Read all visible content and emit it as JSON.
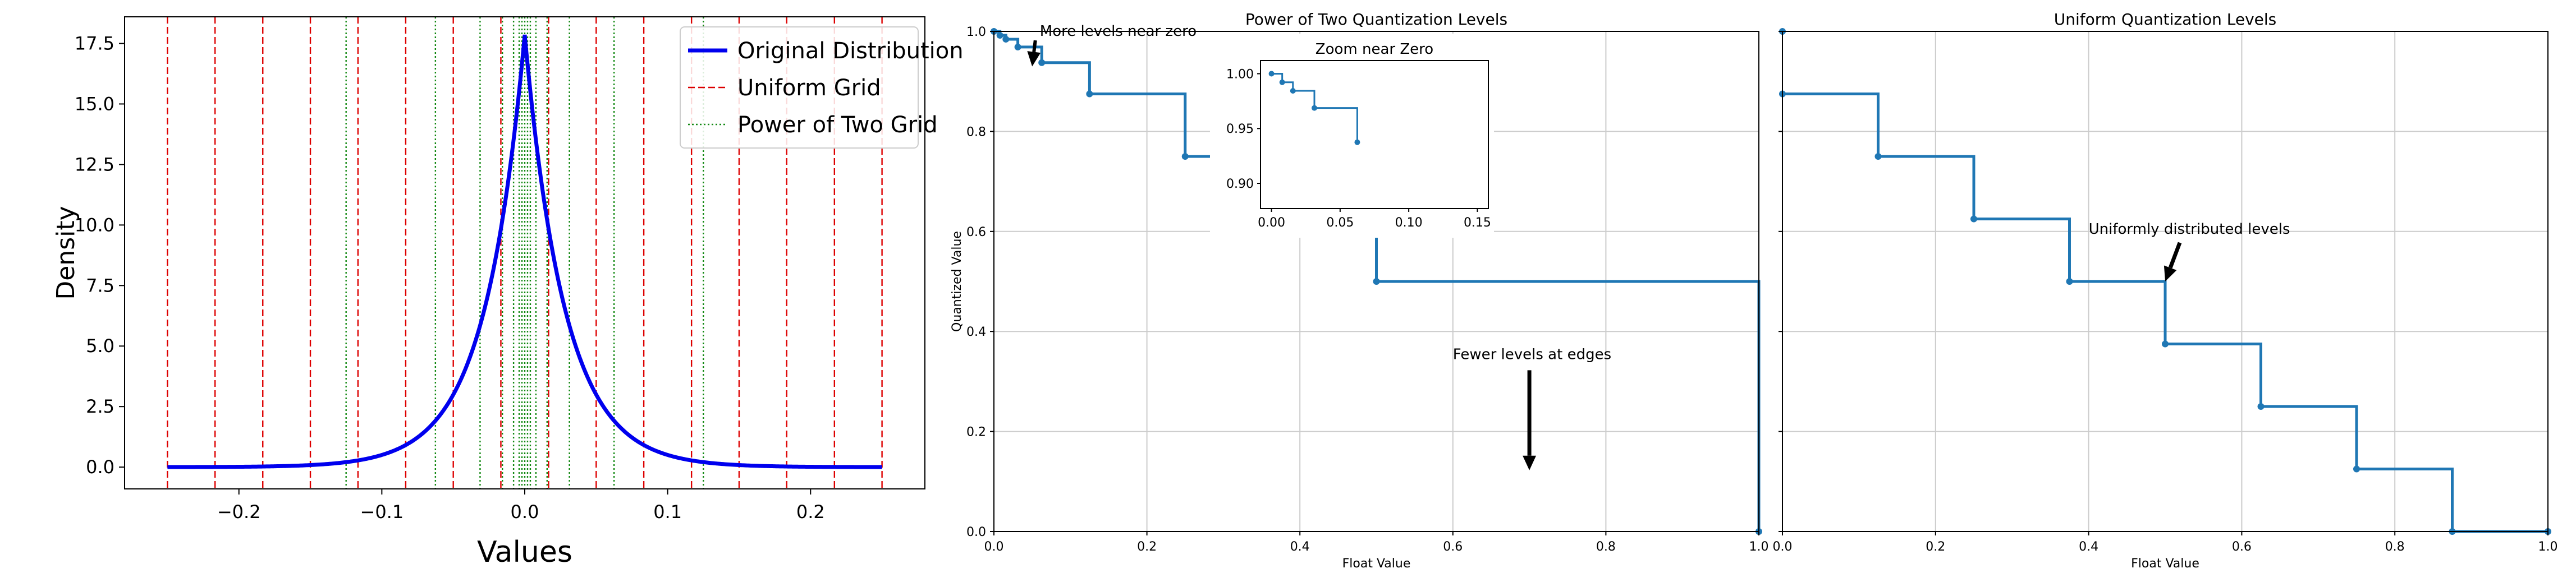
{
  "chart_data": [
    {
      "type": "line",
      "title": "",
      "xlabel": "Values",
      "ylabel": "Density",
      "xlim": [
        -0.28,
        0.28
      ],
      "ylim": [
        -0.9,
        18.6
      ],
      "xticks": [
        -0.2,
        -0.1,
        0.0,
        0.1,
        0.2
      ],
      "xtick_labels": [
        "−0.2",
        "−0.1",
        "0.0",
        "0.1",
        "0.2"
      ],
      "yticks": [
        0.0,
        2.5,
        5.0,
        7.5,
        10.0,
        12.5,
        15.0,
        17.5
      ],
      "ytick_labels": [
        "0.0",
        "2.5",
        "5.0",
        "7.5",
        "10.0",
        "12.5",
        "15.0",
        "17.5"
      ],
      "grid": false,
      "legend_position": "top-right",
      "series": [
        {
          "name": "Original Distribution",
          "style": "solid",
          "color": "#0000ee",
          "distribution": "laplace",
          "loc": 0.0,
          "scale": 0.028,
          "x_range": [
            -0.25,
            0.25
          ]
        }
      ],
      "vertical_lines": [
        {
          "name": "Uniform Grid",
          "style": "dashed",
          "color": "#dd0000",
          "x": [
            -0.25,
            -0.2167,
            -0.1833,
            -0.15,
            -0.1167,
            -0.0833,
            -0.05,
            -0.0167,
            0.0167,
            0.05,
            0.0833,
            0.1167,
            0.15,
            0.1833,
            0.2167,
            0.25
          ]
        },
        {
          "name": "Power of Two Grid",
          "style": "dotted",
          "color": "#118811",
          "x": [
            -0.125,
            -0.0625,
            -0.03125,
            -0.015625,
            -0.0078125,
            -0.00390625,
            -0.001953125,
            0.0,
            0.001953125,
            0.00390625,
            0.0078125,
            0.015625,
            0.03125,
            0.0625,
            0.125
          ]
        }
      ]
    },
    {
      "type": "line",
      "title": "Power of Two Quantization Levels",
      "xlabel": "Float Value",
      "ylabel": "Quantized Value",
      "xlim": [
        0.0,
        1.0
      ],
      "ylim": [
        0.0,
        1.0
      ],
      "xticks": [
        0.0,
        0.2,
        0.4,
        0.6,
        0.8,
        1.0
      ],
      "xtick_labels": [
        "0.0",
        "0.2",
        "0.4",
        "0.6",
        "0.8",
        "1.0"
      ],
      "yticks": [
        0.0,
        0.2,
        0.4,
        0.6,
        0.8,
        1.0
      ],
      "ytick_labels": [
        "0.0",
        "0.2",
        "0.4",
        "0.6",
        "0.8",
        "1.0"
      ],
      "grid": true,
      "step": "post",
      "x": [
        0.0,
        0.0078125,
        0.015625,
        0.03125,
        0.0625,
        0.125,
        0.25,
        0.5,
        1.0
      ],
      "y": [
        1.0,
        0.9921875,
        0.984375,
        0.96875,
        0.9375,
        0.875,
        0.75,
        0.5,
        0.0
      ],
      "annotations": [
        {
          "text": "More levels near zero",
          "xy": [
            0.05,
            0.93
          ],
          "xytext": [
            0.06,
            1.0
          ]
        },
        {
          "text": "Fewer levels at edges",
          "xy": [
            0.7,
            0.1
          ],
          "xytext": [
            0.6,
            0.3
          ]
        }
      ],
      "inset": {
        "title": "Zoom near Zero",
        "xlim": [
          -0.008,
          0.158
        ],
        "ylim": [
          0.877,
          1.012
        ],
        "xticks": [
          0.0,
          0.05,
          0.1,
          0.15
        ],
        "xtick_labels": [
          "0.00",
          "0.05",
          "0.10",
          "0.15"
        ],
        "yticks": [
          0.9,
          0.95,
          1.0
        ],
        "ytick_labels": [
          "0.90",
          "0.95",
          "1.00"
        ],
        "step": "post",
        "x": [
          0.0,
          0.0078125,
          0.015625,
          0.03125,
          0.0625
        ],
        "y": [
          1.0,
          0.9921875,
          0.984375,
          0.96875,
          0.9375
        ]
      }
    },
    {
      "type": "line",
      "title": "Uniform Quantization Levels",
      "xlabel": "Float Value",
      "ylabel": "",
      "xlim": [
        0.0,
        1.0
      ],
      "ylim": [
        0.0,
        1.0
      ],
      "xticks": [
        0.0,
        0.2,
        0.4,
        0.6,
        0.8,
        1.0
      ],
      "xtick_labels": [
        "0.0",
        "0.2",
        "0.4",
        "0.6",
        "0.8",
        "1.0"
      ],
      "yticks": [
        0.0,
        0.2,
        0.4,
        0.6,
        0.8,
        1.0
      ],
      "grid": true,
      "step": "post",
      "x": [
        0.0,
        0.125,
        0.25,
        0.375,
        0.5,
        0.625,
        0.75,
        0.875,
        1.0
      ],
      "y": [
        0.875,
        0.75,
        0.625,
        0.5,
        0.375,
        0.25,
        0.125,
        0.0,
        0.0
      ],
      "extra_points": [
        {
          "x": 0.0,
          "y": 1.0
        }
      ],
      "annotations": [
        {
          "text": "Uniformly distributed levels",
          "xy": [
            0.5,
            0.5
          ],
          "xytext": [
            0.4,
            0.6
          ]
        }
      ]
    }
  ],
  "colors": {
    "density_line": "#0000ee",
    "uniform_grid": "#dd0000",
    "pow2_grid": "#118811",
    "step_line": "#1f77b4",
    "grid": "#cccccc",
    "arrow": "#000000"
  }
}
